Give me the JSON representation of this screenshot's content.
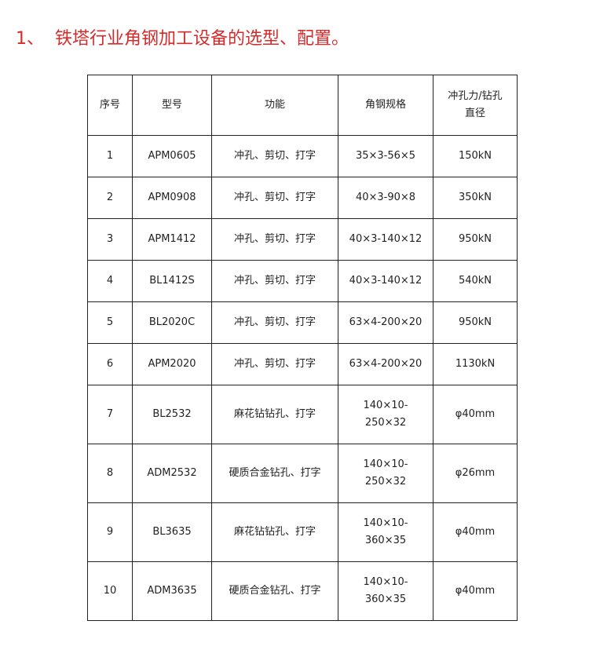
{
  "title": "1、  铁塔行业角钢加工设备的选型、配置。",
  "headers": [
    "序号",
    "型号",
    "功能",
    "角钢规格",
    "冲孔力/钻孔直径"
  ],
  "rows": [
    [
      "1",
      "APM0605",
      "冲孔、剪切、打字",
      "35×3-56×5",
      "150kN"
    ],
    [
      "2",
      "APM0908",
      "冲孔、剪切、打字",
      "40×3-90×8",
      "350kN"
    ],
    [
      "3",
      "APM1412",
      "冲孔、剪切、打字",
      "40×3-140×12",
      "950kN"
    ],
    [
      "4",
      "BL1412S",
      "冲孔、剪切、打字",
      "40×3-140×12",
      "540kN"
    ],
    [
      "5",
      "BL2020C",
      "冲孔、剪切、打字",
      "63×4-200×20",
      "950kN"
    ],
    [
      "6",
      "APM2020",
      "冲孔、剪切、打字",
      "63×4-200×20",
      "1130kN"
    ],
    [
      "7",
      "BL2532",
      "麻花钻钻孔、打字",
      "140×10-250×32",
      "φ40mm"
    ],
    [
      "8",
      "ADM2532",
      "硬质合金钻孔、打字",
      "140×10-250×32",
      "φ26mm"
    ],
    [
      "9",
      "BL3635",
      "麻花钻钻孔、打字",
      "140×10-360×35",
      "φ40mm"
    ],
    [
      "10",
      "ADM3635",
      "硬质合金钻孔、打字",
      "140×10-360×35",
      "φ40mm"
    ]
  ],
  "colors": {
    "title": "#d42b2b"
  }
}
